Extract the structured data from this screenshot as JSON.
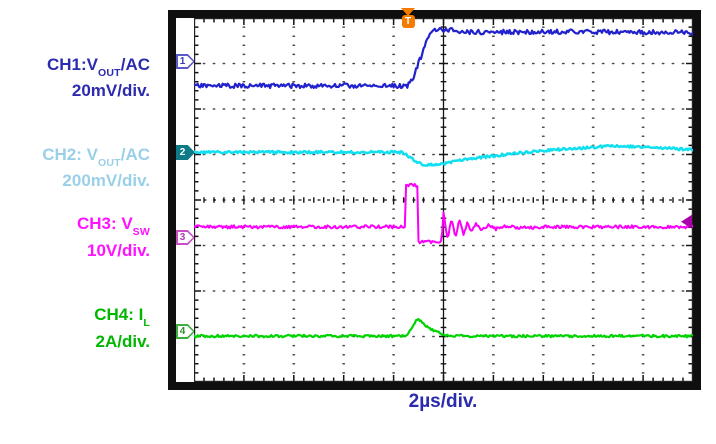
{
  "labels": {
    "ch1": {
      "pre": "CH1:V",
      "sub": "OUT",
      "post": "/AC",
      "scale": "20mV/div.",
      "color": "#2b2bb0"
    },
    "ch2": {
      "pre": "CH2: V",
      "sub": "OUT",
      "post": "/AC",
      "scale": "200mV/div.",
      "color": "#99d0e8"
    },
    "ch3": {
      "pre": "CH3: V",
      "sub": "SW",
      "post": "",
      "scale": "10V/div.",
      "color": "#ff12ff"
    },
    "ch4": {
      "pre": "CH4: I",
      "sub": "L",
      "post": "",
      "scale": "2A/div.",
      "color": "#00b600"
    }
  },
  "scope": {
    "timebase": "2µs/div.",
    "timebase_color": "#2a2aad",
    "trigger_label": "T",
    "trigger_color": "#f57a00",
    "frame_color": "#0f0f0f",
    "channel_markers": [
      {
        "label": "1",
        "outline": "#5a5ac8",
        "fill": "#ffffff",
        "text_color": "#3a3ab8"
      },
      {
        "label": "2",
        "outline": "#0e7a88",
        "fill": "#0e7a88",
        "text_color": "#ffffff"
      },
      {
        "label": "3",
        "outline": "#c84fc8",
        "fill": "#ffffff",
        "text_color": "#b03ab0"
      },
      {
        "label": "4",
        "outline": "#3fae3f",
        "fill": "#ffffff",
        "text_color": "#2f8f2f"
      }
    ]
  },
  "chart_data": {
    "type": "line",
    "title": "",
    "x_divisions": 10,
    "y_divisions": 8,
    "timebase_per_div": "2µs",
    "grid": "dotted division lines, tick-marked center axes and edges",
    "trigger": {
      "x_div": 4.29,
      "label": "T",
      "color": "#f57a00"
    },
    "series": [
      {
        "name": "CH1",
        "label": "CH1:VOUT/AC",
        "scale_per_div": "20mV",
        "color": "#2222cc",
        "stroke": 2.2,
        "noise_div": 0.05,
        "seed": 11,
        "zero_marker_y_div": 0.97,
        "points_div": [
          [
            0,
            1.49
          ],
          [
            4.27,
            1.49
          ],
          [
            4.38,
            1.35
          ],
          [
            4.55,
            0.85
          ],
          [
            4.7,
            0.42
          ],
          [
            4.8,
            0.28
          ],
          [
            4.95,
            0.25
          ],
          [
            5.15,
            0.27
          ],
          [
            5.5,
            0.31
          ],
          [
            7.5,
            0.3
          ],
          [
            10,
            0.32
          ]
        ]
      },
      {
        "name": "CH2",
        "label": "CH2: VOUT/AC",
        "scale_per_div": "200mV",
        "color": "#10dff0",
        "stroke": 2.5,
        "noise_div": 0.028,
        "seed": 23,
        "zero_marker_y_div": 2.97,
        "points_div": [
          [
            0,
            2.95
          ],
          [
            4.18,
            2.95
          ],
          [
            4.32,
            3.06
          ],
          [
            4.5,
            3.19
          ],
          [
            4.68,
            3.23
          ],
          [
            5.0,
            3.21
          ],
          [
            5.4,
            3.12
          ],
          [
            6.0,
            3.03
          ],
          [
            6.6,
            2.96
          ],
          [
            7.3,
            2.89
          ],
          [
            8.3,
            2.82
          ],
          [
            9.0,
            2.83
          ],
          [
            9.6,
            2.87
          ],
          [
            10,
            2.9
          ]
        ]
      },
      {
        "name": "CH3",
        "label": "CH3: VSW",
        "scale_per_div": "10V",
        "color": "#fa00fa",
        "stroke": 2.0,
        "noise_div": 0.035,
        "seed": 37,
        "zero_marker_y_div": 4.84,
        "points_div": [
          [
            0,
            4.59
          ],
          [
            4.23,
            4.59
          ],
          [
            4.25,
            3.7
          ],
          [
            4.32,
            3.66
          ],
          [
            4.48,
            3.68
          ],
          [
            4.5,
            4.92
          ],
          [
            4.96,
            4.92
          ],
          [
            5.0,
            4.26
          ],
          [
            5.08,
            4.88
          ],
          [
            5.16,
            4.4
          ],
          [
            5.24,
            4.79
          ],
          [
            5.32,
            4.45
          ],
          [
            5.4,
            4.74
          ],
          [
            5.48,
            4.49
          ],
          [
            5.56,
            4.7
          ],
          [
            5.66,
            4.52
          ],
          [
            5.76,
            4.67
          ],
          [
            5.9,
            4.55
          ],
          [
            6.05,
            4.64
          ],
          [
            6.25,
            4.57
          ],
          [
            6.5,
            4.62
          ],
          [
            7.0,
            4.59
          ],
          [
            10,
            4.59
          ]
        ]
      },
      {
        "name": "CH4",
        "label": "CH4: IL",
        "scale_per_div": "2A",
        "color": "#00d400",
        "stroke": 2.2,
        "noise_div": 0.027,
        "seed": 41,
        "zero_marker_y_div": 6.9,
        "points_div": [
          [
            0,
            6.99
          ],
          [
            4.26,
            6.99
          ],
          [
            4.36,
            6.82
          ],
          [
            4.48,
            6.61
          ],
          [
            4.6,
            6.72
          ],
          [
            4.78,
            6.86
          ],
          [
            5.0,
            6.96
          ],
          [
            5.15,
            6.99
          ],
          [
            10,
            6.99
          ]
        ]
      }
    ],
    "right_marker": {
      "channel": "CH3",
      "y_div": 4.48,
      "color": "#aa00aa"
    }
  }
}
